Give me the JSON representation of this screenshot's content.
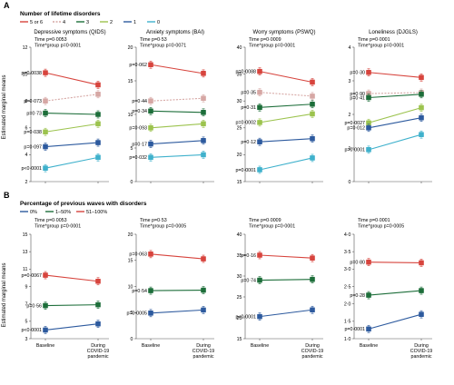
{
  "figure": {
    "panel_a": {
      "letter": "A",
      "legend_title": "Number of lifetime disorders",
      "legend": [
        {
          "label": "5 or 6",
          "color": "#d7443d"
        },
        {
          "label": "4",
          "color": "#d6a7a4"
        },
        {
          "label": "3",
          "color": "#1d6e3a"
        },
        {
          "label": "2",
          "color": "#9cc34e"
        },
        {
          "label": "1",
          "color": "#2d5a9e"
        },
        {
          "label": "0",
          "color": "#3fb1cc"
        }
      ],
      "ylabel": "Estimated marginal means"
    },
    "panel_b": {
      "letter": "B",
      "legend_title": "Percentage of previous waves with disorders",
      "legend": [
        {
          "label": "0%",
          "color": "#2d5a9e"
        },
        {
          "label": "1–50%",
          "color": "#1d6e3a"
        },
        {
          "label": "51–100%",
          "color": "#d7443d"
        }
      ],
      "ylabel": "Estimated marginal means",
      "x_ticks": [
        "Baseline",
        "During COVID-19 pandemic"
      ]
    }
  },
  "chart_data": [
    {
      "type": "line",
      "panel": "A",
      "title": "Depressive symptoms (QIDS)",
      "stats": [
        "Time p=0·0053",
        "Time*group p=0·0001"
      ],
      "ylim": [
        2,
        12
      ],
      "yticks": [
        2,
        4,
        6,
        8,
        10,
        12
      ],
      "categories": [
        "Baseline",
        "During COVID-19 pandemic"
      ],
      "series": [
        {
          "name": "5 or 6",
          "color": "#d7443d",
          "values": [
            10.1,
            9.2
          ],
          "p": "p=0·0038",
          "dashed": false
        },
        {
          "name": "4",
          "color": "#d6a7a4",
          "values": [
            8.0,
            8.5
          ],
          "p": "p=0·073",
          "dashed": true
        },
        {
          "name": "3",
          "color": "#1d6e3a",
          "values": [
            7.1,
            7.0
          ],
          "p": "p=0·73",
          "dashed": false
        },
        {
          "name": "2",
          "color": "#9cc34e",
          "values": [
            5.7,
            6.3
          ],
          "p": "p=0·038",
          "dashed": false
        },
        {
          "name": "1",
          "color": "#2d5a9e",
          "values": [
            4.6,
            4.9
          ],
          "p": "p=0·097",
          "dashed": false
        },
        {
          "name": "0",
          "color": "#3fb1cc",
          "values": [
            3.0,
            3.8
          ],
          "p": "p<0·0001",
          "dashed": false
        }
      ]
    },
    {
      "type": "line",
      "panel": "A",
      "title": "Anxiety symptoms (BAI)",
      "stats": [
        "Time p=0·53",
        "Time*group p=0·0071"
      ],
      "ylim": [
        0,
        20
      ],
      "yticks": [
        0,
        5,
        10,
        15,
        20
      ],
      "categories": [
        "Baseline",
        "During COVID-19 pandemic"
      ],
      "series": [
        {
          "name": "5 or 6",
          "color": "#d7443d",
          "values": [
            17.4,
            16.1
          ],
          "p": "p=0·062",
          "dashed": false
        },
        {
          "name": "4",
          "color": "#d6a7a4",
          "values": [
            12.0,
            12.4
          ],
          "p": "p=0·44",
          "dashed": true
        },
        {
          "name": "3",
          "color": "#1d6e3a",
          "values": [
            10.5,
            10.3
          ],
          "p": "p=0·34",
          "dashed": false
        },
        {
          "name": "2",
          "color": "#9cc34e",
          "values": [
            8.0,
            8.6
          ],
          "p": "p=0·093",
          "dashed": false
        },
        {
          "name": "1",
          "color": "#2d5a9e",
          "values": [
            5.6,
            6.1
          ],
          "p": "p=0·17",
          "dashed": false
        },
        {
          "name": "0",
          "color": "#3fb1cc",
          "values": [
            3.6,
            4.0
          ],
          "p": "p=0·032",
          "dashed": false
        }
      ]
    },
    {
      "type": "line",
      "panel": "A",
      "title": "Worry symptoms (PSWQ)",
      "stats": [
        "Time p=0·0009",
        "Time*group p=0·0001"
      ],
      "ylim": [
        15,
        40
      ],
      "yticks": [
        15,
        20,
        25,
        30,
        35,
        40
      ],
      "categories": [
        "Baseline",
        "During COVID-19 pandemic"
      ],
      "series": [
        {
          "name": "5 or 6",
          "color": "#d7443d",
          "values": [
            35.5,
            33.5
          ],
          "p": "p=0·0088",
          "dashed": false
        },
        {
          "name": "4",
          "color": "#d6a7a4",
          "values": [
            31.6,
            30.9
          ],
          "p": "p=0·35",
          "dashed": true
        },
        {
          "name": "3",
          "color": "#1d6e3a",
          "values": [
            28.8,
            29.4
          ],
          "p": "p=0·31",
          "dashed": false
        },
        {
          "name": "2",
          "color": "#9cc34e",
          "values": [
            26.0,
            27.6
          ],
          "p": "p=0·0002",
          "dashed": false
        },
        {
          "name": "1",
          "color": "#2d5a9e",
          "values": [
            22.4,
            23.0
          ],
          "p": "p=0·12",
          "dashed": false
        },
        {
          "name": "0",
          "color": "#3fb1cc",
          "values": [
            17.2,
            19.4
          ],
          "p": "p=0·0001",
          "dashed": false
        }
      ]
    },
    {
      "type": "line",
      "panel": "A",
      "title": "Loneliness (DJGLS)",
      "stats": [
        "Time p=0·0001",
        "Time*group p=0·0001"
      ],
      "ylim": [
        0,
        4
      ],
      "yticks": [
        0,
        1,
        2,
        3,
        4
      ],
      "categories": [
        "Baseline",
        "During COVID-19 pandemic"
      ],
      "series": [
        {
          "name": "5 or 6",
          "color": "#d7443d",
          "values": [
            3.25,
            3.1
          ],
          "p": "p=0·30",
          "dashed": false
        },
        {
          "name": "4",
          "color": "#d6a7a4",
          "values": [
            2.62,
            2.65
          ],
          "p": "p=0·90",
          "dashed": true
        },
        {
          "name": "3",
          "color": "#1d6e3a",
          "values": [
            2.5,
            2.6
          ],
          "p": "p=0·41",
          "dashed": false
        },
        {
          "name": "2",
          "color": "#9cc34e",
          "values": [
            1.75,
            2.2
          ],
          "p": "p=0·0027",
          "dashed": false
        },
        {
          "name": "1",
          "color": "#2d5a9e",
          "values": [
            1.6,
            1.9
          ],
          "p": "p=0·012",
          "dashed": false
        },
        {
          "name": "0",
          "color": "#3fb1cc",
          "values": [
            0.95,
            1.4
          ],
          "p": "p=0·0001",
          "dashed": false
        }
      ]
    },
    {
      "type": "line",
      "panel": "B",
      "stats": [
        "Time p=0·0053",
        "Time*group p=0·0001"
      ],
      "ylim": [
        3,
        15
      ],
      "yticks": [
        3,
        5,
        7,
        9,
        11,
        13,
        15
      ],
      "categories": [
        "Baseline",
        "During COVID-19 pandemic"
      ],
      "series": [
        {
          "name": "51–100%",
          "color": "#d7443d",
          "values": [
            10.3,
            9.6
          ],
          "p": "p=0·0067",
          "dashed": false
        },
        {
          "name": "1–50%",
          "color": "#1d6e3a",
          "values": [
            6.8,
            6.9
          ],
          "p": "p=0·56",
          "dashed": false
        },
        {
          "name": "0%",
          "color": "#2d5a9e",
          "values": [
            4.0,
            4.7
          ],
          "p": "p<0·0001",
          "dashed": false
        }
      ]
    },
    {
      "type": "line",
      "panel": "B",
      "stats": [
        "Time p=0·53",
        "Time*group p=0·0005"
      ],
      "ylim": [
        0,
        20
      ],
      "yticks": [
        0,
        5,
        10,
        15,
        20
      ],
      "categories": [
        "Baseline",
        "During COVID-19 pandemic"
      ],
      "series": [
        {
          "name": "51–100%",
          "color": "#d7443d",
          "values": [
            16.2,
            15.3
          ],
          "p": "p=0·063",
          "dashed": false
        },
        {
          "name": "1–50%",
          "color": "#1d6e3a",
          "values": [
            9.2,
            9.3
          ],
          "p": "p=0·54",
          "dashed": false
        },
        {
          "name": "0%",
          "color": "#2d5a9e",
          "values": [
            4.9,
            5.5
          ],
          "p": "p=0·0005",
          "dashed": false
        }
      ]
    },
    {
      "type": "line",
      "panel": "B",
      "stats": [
        "Time p=0·0009",
        "Time*group p=0·0001"
      ],
      "ylim": [
        15,
        40
      ],
      "yticks": [
        15,
        20,
        25,
        30,
        35,
        40
      ],
      "categories": [
        "Baseline",
        "During COVID-19 pandemic"
      ],
      "series": [
        {
          "name": "51–100%",
          "color": "#d7443d",
          "values": [
            35.0,
            34.3
          ],
          "p": "p=0·16",
          "dashed": false
        },
        {
          "name": "1–50%",
          "color": "#1d6e3a",
          "values": [
            29.0,
            29.2
          ],
          "p": "p=0·74",
          "dashed": false
        },
        {
          "name": "0%",
          "color": "#2d5a9e",
          "values": [
            20.3,
            21.9
          ],
          "p": "p<0·0001",
          "dashed": false
        }
      ]
    },
    {
      "type": "line",
      "panel": "B",
      "stats": [
        "Time p=0·0001",
        "Time*group p=0·0005"
      ],
      "ylim": [
        1.0,
        4.0
      ],
      "yticks": [
        1.0,
        1.5,
        2.0,
        2.5,
        3.0,
        3.5,
        4.0
      ],
      "categories": [
        "Baseline",
        "During COVID-19 pandemic"
      ],
      "series": [
        {
          "name": "51–100%",
          "color": "#d7443d",
          "values": [
            3.2,
            3.18
          ],
          "p": "p=0·80",
          "dashed": false
        },
        {
          "name": "1–50%",
          "color": "#1d6e3a",
          "values": [
            2.25,
            2.38
          ],
          "p": "p=0·28",
          "dashed": false
        },
        {
          "name": "0%",
          "color": "#2d5a9e",
          "values": [
            1.28,
            1.7
          ],
          "p": "p=0·0001",
          "dashed": false
        }
      ]
    }
  ]
}
